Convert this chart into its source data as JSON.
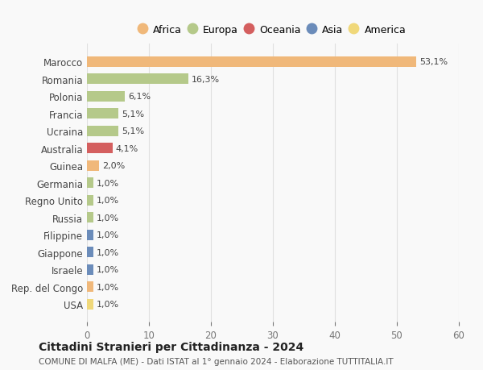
{
  "categories": [
    "Marocco",
    "Romania",
    "Polonia",
    "Francia",
    "Ucraina",
    "Australia",
    "Guinea",
    "Germania",
    "Regno Unito",
    "Russia",
    "Filippine",
    "Giappone",
    "Israele",
    "Rep. del Congo",
    "USA"
  ],
  "values": [
    53.1,
    16.3,
    6.1,
    5.1,
    5.1,
    4.1,
    2.0,
    1.0,
    1.0,
    1.0,
    1.0,
    1.0,
    1.0,
    1.0,
    1.0
  ],
  "labels": [
    "53,1%",
    "16,3%",
    "6,1%",
    "5,1%",
    "5,1%",
    "4,1%",
    "2,0%",
    "1,0%",
    "1,0%",
    "1,0%",
    "1,0%",
    "1,0%",
    "1,0%",
    "1,0%",
    "1,0%"
  ],
  "colors": [
    "#f0b87a",
    "#b5c98a",
    "#b5c98a",
    "#b5c98a",
    "#b5c98a",
    "#d45f5f",
    "#f0b87a",
    "#b5c98a",
    "#b5c98a",
    "#b5c98a",
    "#6b8cba",
    "#6b8cba",
    "#6b8cba",
    "#f0b87a",
    "#f0d87a"
  ],
  "continent_colors": {
    "Africa": "#f0b87a",
    "Europa": "#b5c98a",
    "Oceania": "#d45f5f",
    "Asia": "#6b8cba",
    "America": "#f0d87a"
  },
  "legend_labels": [
    "Africa",
    "Europa",
    "Oceania",
    "Asia",
    "America"
  ],
  "xlim": [
    0,
    60
  ],
  "xticks": [
    0,
    10,
    20,
    30,
    40,
    50,
    60
  ],
  "title": "Cittadini Stranieri per Cittadinanza - 2024",
  "subtitle": "COMUNE DI MALFA (ME) - Dati ISTAT al 1° gennaio 2024 - Elaborazione TUTTITALIA.IT",
  "bg_color": "#f9f9f9",
  "grid_color": "#e0e0e0"
}
